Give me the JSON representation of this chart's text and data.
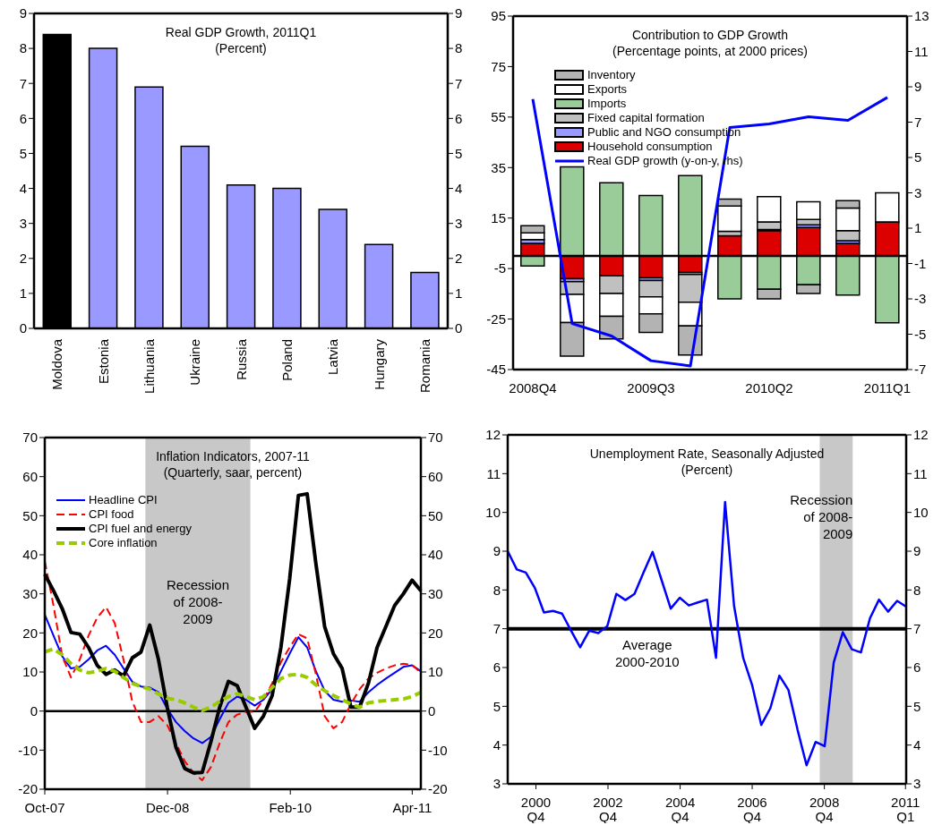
{
  "chart_data": [
    {
      "type": "bar",
      "title": "Real GDP Growth, 2011Q1",
      "subtitle": "(Percent)",
      "categories": [
        "Moldova",
        "Estonia",
        "Lithuania",
        "Ukraine",
        "Russia",
        "Poland",
        "Latvia",
        "Hungary",
        "Romania"
      ],
      "values": [
        8.4,
        8.0,
        6.9,
        5.2,
        4.1,
        4.0,
        3.4,
        2.4,
        1.6
      ],
      "colors": [
        "#000000",
        "#9999ff",
        "#9999ff",
        "#9999ff",
        "#9999ff",
        "#9999ff",
        "#9999ff",
        "#9999ff",
        "#9999ff"
      ],
      "ylim": [
        0,
        9
      ],
      "yticks": [
        0,
        1,
        2,
        3,
        4,
        5,
        6,
        7,
        8,
        9
      ],
      "y2lim": [
        0,
        9
      ],
      "y2ticks": [
        0,
        1,
        2,
        3,
        4,
        5,
        6,
        7,
        8,
        9
      ],
      "grid": false,
      "legend": false
    },
    {
      "type": "bar",
      "stacked": true,
      "title": "Contribution to GDP Growth",
      "subtitle": "(Percentage points, at 2000 prices)",
      "categories": [
        "2008Q4",
        null,
        null,
        "2009Q3",
        null,
        null,
        "2010Q2",
        null,
        null,
        "2011Q1"
      ],
      "series": [
        {
          "name": "Household consumption",
          "color": "#dd0000",
          "values": [
            5,
            -9,
            -7.9,
            -8.7,
            -6.5,
            8,
            10,
            11.3,
            5,
            13.5
          ]
        },
        {
          "name": "Public and NGO consumption",
          "color": "#9999ff",
          "values": [
            1.5,
            -1.2,
            null,
            -1,
            -0.8,
            null,
            0.5,
            1,
            1,
            0
          ]
        },
        {
          "name": "Fixed capital formation",
          "color": "#c0c0c0",
          "values": [
            0,
            -5,
            -7,
            -6.5,
            -11,
            1.8,
            3,
            2.2,
            4,
            0
          ]
        },
        {
          "name": "Imports",
          "color": "#99cc99",
          "values": [
            -4,
            35.3,
            29,
            23.9,
            31.8,
            -17,
            -13.2,
            -11.4,
            -15.5,
            -26.5
          ]
        },
        {
          "name": "Exports",
          "color": "#ffffff",
          "values": [
            2.6,
            -11.2,
            -9,
            -6.7,
            -9.4,
            10,
            10,
            7,
            9,
            11.5
          ]
        },
        {
          "name": "Inventory",
          "color": "#b3b3b3",
          "values": [
            2.9,
            -13.3,
            -9,
            -7.4,
            -11.5,
            2.7,
            -3.8,
            -3.5,
            2.9,
            0
          ]
        },
        {
          "name": "Real GDP growth (y-on-y, rhs)",
          "type": "line",
          "axis": "y2",
          "color": "#0000ff",
          "values": [
            8.3,
            -4.4,
            -5.1,
            -6.5,
            -6.8,
            6.7,
            6.9,
            7.3,
            7.1,
            8.4
          ]
        }
      ],
      "ylim": [
        -45,
        95
      ],
      "yticks": [
        -45,
        -25,
        -5,
        15,
        35,
        55,
        75,
        95
      ],
      "y2lim": [
        -7,
        13
      ],
      "y2ticks": [
        -7,
        -5,
        -3,
        -1,
        1,
        3,
        5,
        7,
        9,
        11,
        13
      ],
      "ref_lines": [
        {
          "axis": "y",
          "value": 0,
          "color": "#000000"
        }
      ],
      "grid": false,
      "legend": "top left"
    },
    {
      "type": "line",
      "title": "Inflation Indicators, 2007-11",
      "subtitle": "(Quarterly, saar, percent)",
      "x": [
        "2007-10",
        "2007-11",
        "2007-12",
        "2008-01",
        "2008-02",
        "2008-03",
        "2008-04",
        "2008-05",
        "2008-06",
        "2008-07",
        "2008-08",
        "2008-09",
        "2008-10",
        "2008-11",
        "2008-12",
        "2009-01",
        "2009-02",
        "2009-03",
        "2009-04",
        "2009-05",
        "2009-06",
        "2009-07",
        "2009-08",
        "2009-09",
        "2009-10",
        "2009-11",
        "2009-12",
        "2010-01",
        "2010-02",
        "2010-03",
        "2010-04",
        "2010-05",
        "2010-06",
        "2010-07",
        "2010-08",
        "2010-09",
        "2010-10",
        "2010-11",
        "2010-12",
        "2011-01",
        "2011-02",
        "2011-03",
        "2011-04",
        "2011-05"
      ],
      "series": [
        {
          "name": "Headline CPI",
          "color": "#0000ff",
          "line_style": "solid",
          "values": [
            24.7,
            19.3,
            14,
            10.9,
            11.3,
            13.2,
            15.5,
            16.7,
            14.4,
            10.9,
            7.5,
            6.3,
            6,
            4.8,
            0.6,
            -2.8,
            -5.1,
            -7,
            -8.2,
            -6.6,
            -2.1,
            2.1,
            3.7,
            2.9,
            1.4,
            2.9,
            5.6,
            10.2,
            14.7,
            18.9,
            16.3,
            10.2,
            5.2,
            2.9,
            2.4,
            2.7,
            2.4,
            4.8,
            6.7,
            8.3,
            9.8,
            11.3,
            11.7,
            10.2
          ]
        },
        {
          "name": "CPI food",
          "color": "#ff0000",
          "line_style": "dashed",
          "values": [
            38.4,
            27,
            14,
            8.6,
            13.2,
            19.3,
            23.9,
            26.6,
            22.5,
            13.2,
            2.5,
            -2.8,
            -2.8,
            -1.3,
            -3.6,
            -8.2,
            -12.8,
            -15.8,
            -17.7,
            -14.3,
            -8.2,
            -2.8,
            -0.9,
            -0.2,
            -0.2,
            2.9,
            7.1,
            12.5,
            16.3,
            19.7,
            18.6,
            9.4,
            -1.3,
            -4.4,
            -2.8,
            1.8,
            5.6,
            8.3,
            9.8,
            10.9,
            11.7,
            12.1,
            11.8,
            9.8
          ]
        },
        {
          "name": "CPI fuel and energy",
          "color": "#000000",
          "line_style": "solid",
          "values": [
            35,
            30.8,
            26.2,
            20.1,
            19.7,
            16.3,
            11.7,
            9.4,
            10.5,
            9,
            13.6,
            15.1,
            22,
            13.2,
            1,
            -9.3,
            -14.7,
            -15.8,
            -15.7,
            -7.8,
            1,
            7.6,
            6.5,
            1,
            -4.4,
            -1.3,
            4,
            16.3,
            33.8,
            55.2,
            55.6,
            37.7,
            21.6,
            14.7,
            10.9,
            1,
            1,
            7.1,
            16.3,
            21.6,
            27,
            30,
            33.5,
            30.8
          ]
        },
        {
          "name": "Core inflation",
          "color": "#99cc00",
          "line_style": "dashed",
          "values": [
            15.1,
            15.9,
            14.4,
            12.1,
            10.5,
            9.8,
            10.2,
            10.9,
            10.2,
            8.6,
            7.1,
            6.3,
            5.6,
            4.4,
            3.3,
            2.9,
            2.1,
            1,
            0.1,
            1,
            2.5,
            3.7,
            4.4,
            3.7,
            2.9,
            3.7,
            6,
            8.3,
            9.2,
            9.4,
            8.6,
            6.7,
            5.2,
            4,
            2.9,
            1.8,
            1,
            2.1,
            2.5,
            2.7,
            2.9,
            3.1,
            3.7,
            4.8
          ]
        }
      ],
      "xlim": [
        "2007-10",
        "2011-05"
      ],
      "xticks": [
        {
          "value": "2007-10",
          "label": "Oct-07"
        },
        {
          "value": "2008-12",
          "label": "Dec-08"
        },
        {
          "value": "2010-02",
          "label": "Feb-10"
        },
        {
          "value": "2011-04",
          "label": "Apr-11"
        }
      ],
      "ylim": [
        -20,
        70
      ],
      "yticks": [
        -20,
        -10,
        0,
        10,
        20,
        30,
        40,
        50,
        60,
        70
      ],
      "y2lim": [
        -20,
        70
      ],
      "y2ticks": [
        -20,
        -10,
        0,
        10,
        20,
        30,
        40,
        50,
        60,
        70
      ],
      "bands": [
        {
          "axis": "x",
          "from": "2008-09-15",
          "to": "2009-09-15",
          "label": "Recession of 2008-2009",
          "color": "#c8c8c8"
        }
      ],
      "ref_lines": [
        {
          "axis": "y",
          "value": 0,
          "color": "#000000"
        }
      ],
      "grid": false,
      "legend": "top left",
      "marker": "none"
    },
    {
      "type": "line",
      "title": "Unemployment Rate, Seasonally Adjusted",
      "subtitle": "(Percent)",
      "x": [
        "2000-01",
        "2000-04",
        "2000-07",
        "2000-10",
        "2001-01",
        "2001-04",
        "2001-07",
        "2001-10",
        "2002-01",
        "2002-04",
        "2002-07",
        "2002-10",
        "2003-01",
        "2003-04",
        "2003-07",
        "2003-10",
        "2004-01",
        "2004-04",
        "2004-07",
        "2004-10",
        "2005-01",
        "2005-04",
        "2005-07",
        "2005-10",
        "2006-01",
        "2006-04",
        "2006-07",
        "2006-10",
        "2007-01",
        "2007-04",
        "2007-07",
        "2007-10",
        "2008-01",
        "2008-04",
        "2008-07",
        "2008-10",
        "2009-01",
        "2009-04",
        "2009-07",
        "2009-10",
        "2010-01",
        "2010-04",
        "2010-07",
        "2010-10",
        "2011-01"
      ],
      "series": [
        {
          "color": "#0000ff",
          "values": [
            9.0,
            8.53,
            8.45,
            8.05,
            7.42,
            7.46,
            7.39,
            6.95,
            6.52,
            6.95,
            6.89,
            7.07,
            7.9,
            7.74,
            7.9,
            8.45,
            8.98,
            8.25,
            7.52,
            7.8,
            7.6,
            7.68,
            7.75,
            6.25,
            10.27,
            7.58,
            6.25,
            5.54,
            4.52,
            4.95,
            5.79,
            5.42,
            4.4,
            3.48,
            4.08,
            3.97,
            6.13,
            6.91,
            6.47,
            6.39,
            7.27,
            7.75,
            7.44,
            7.72,
            7.57
          ]
        }
      ],
      "xlim": [
        "1999-12-20",
        "2011-01-08"
      ],
      "xticks": [
        {
          "value": "2000-10",
          "label": "2000\nQ4"
        },
        {
          "value": "2002-10",
          "label": "2002\nQ4"
        },
        {
          "value": "2004-10",
          "label": "2004\nQ4"
        },
        {
          "value": "2006-10",
          "label": "2006\nQ4"
        },
        {
          "value": "2008-10",
          "label": "2008\nQ4"
        },
        {
          "value": "2011-01",
          "label": "2011\nQ1"
        }
      ],
      "ylim": [
        3,
        12
      ],
      "yticks": [
        3,
        4,
        5,
        6,
        7,
        8,
        9,
        10,
        11,
        12
      ],
      "y2lim": [
        3,
        12
      ],
      "y2ticks": [
        3,
        4,
        5,
        6,
        7,
        8,
        9,
        10,
        11,
        12
      ],
      "bands": [
        {
          "axis": "x",
          "from": "2008-08-15",
          "to": "2009-07-15",
          "label": "Recession of 2008-2009",
          "color": "#c8c8c8"
        }
      ],
      "ref_lines": [
        {
          "axis": "y",
          "value": 7,
          "label": "Average 2000-2010",
          "color": "#000000"
        }
      ],
      "grid": false,
      "legend": false,
      "marker": "none"
    }
  ]
}
